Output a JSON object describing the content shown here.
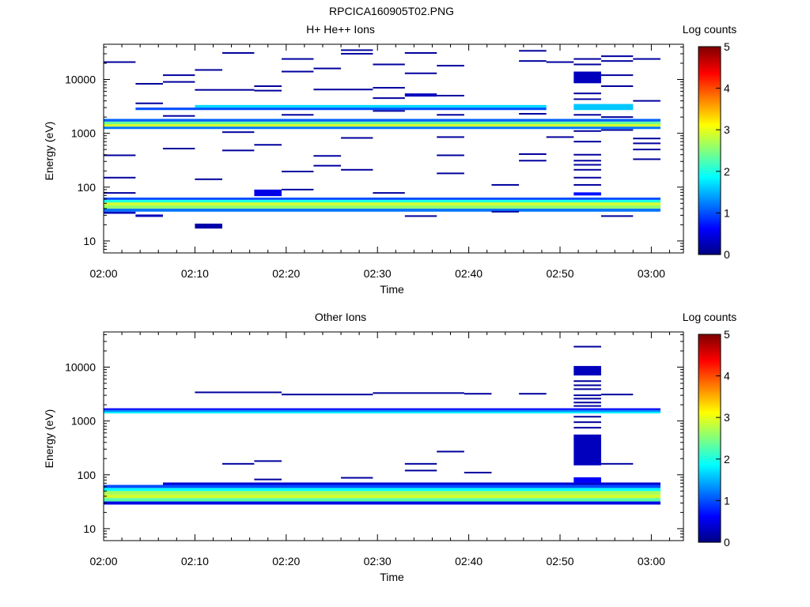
{
  "window_title": "RPCICA160905T02.PNG",
  "chart_data": [
    {
      "type": "heatmap",
      "title": "H+ He++ Ions",
      "xlabel": "Time",
      "ylabel": "Energy (eV)",
      "y_scale": "log",
      "ylim": [
        6,
        45000
      ],
      "y_ticks": [
        10,
        100,
        1000,
        10000
      ],
      "x_ticks": [
        "02:00",
        "02:10",
        "02:20",
        "02:30",
        "02:40",
        "02:50",
        "03:00"
      ],
      "x_range_minutes": [
        0,
        63
      ],
      "colorbar": {
        "label": "Log counts",
        "range": [
          0,
          5
        ],
        "ticks": [
          0,
          1,
          2,
          3,
          4,
          5
        ]
      },
      "grid": false,
      "bands": [
        {
          "t0": 0,
          "t1": 61,
          "e0": 35,
          "e1": 40,
          "v": 1.2
        },
        {
          "t0": 0,
          "t1": 61,
          "e0": 40,
          "e1": 46,
          "v": 2.6
        },
        {
          "t0": 0,
          "t1": 61,
          "e0": 46,
          "e1": 52,
          "v": 2.9
        },
        {
          "t0": 0,
          "t1": 61,
          "e0": 52,
          "e1": 58,
          "v": 2.0
        },
        {
          "t0": 0,
          "t1": 61,
          "e0": 58,
          "e1": 64,
          "v": 1.0
        },
        {
          "t0": 0,
          "t1": 61,
          "e0": 1200,
          "e1": 1330,
          "v": 1.2
        },
        {
          "t0": 0,
          "t1": 61,
          "e0": 1330,
          "e1": 1480,
          "v": 2.9
        },
        {
          "t0": 0,
          "t1": 61,
          "e0": 1480,
          "e1": 1650,
          "v": 2.4
        },
        {
          "t0": 0,
          "t1": 61,
          "e0": 1650,
          "e1": 1850,
          "v": 1.1
        },
        {
          "t0": 3.5,
          "t1": 48.5,
          "e0": 2700,
          "e1": 3000,
          "v": 1.0
        },
        {
          "t0": 10,
          "t1": 48.5,
          "e0": 3000,
          "e1": 3350,
          "v": 1.7
        },
        {
          "t0": 51.5,
          "t1": 58,
          "e0": 2700,
          "e1": 3500,
          "v": 1.6
        },
        {
          "t0": 16.5,
          "t1": 19.5,
          "e0": 68,
          "e1": 90,
          "v": 0.5
        },
        {
          "t0": 51.5,
          "t1": 54.5,
          "e0": 70,
          "e1": 80,
          "v": 0.7
        },
        {
          "t0": 10,
          "t1": 13,
          "e0": 17,
          "e1": 21,
          "v": 0.2
        },
        {
          "t0": 3.5,
          "t1": 6.5,
          "e0": 28,
          "e1": 31,
          "v": 0.3
        },
        {
          "t0": 0,
          "t1": 3.5,
          "e0": 32,
          "e1": 35,
          "v": 0.3
        },
        {
          "t0": 51.5,
          "t1": 54.5,
          "e0": 8500,
          "e1": 14000,
          "v": 0.3
        },
        {
          "t0": 33,
          "t1": 36.5,
          "e0": 4800,
          "e1": 5500,
          "v": 0.3
        }
      ],
      "lines": [
        {
          "t0": 0,
          "t1": 3.5,
          "e": 21000
        },
        {
          "t0": 0,
          "t1": 3.5,
          "e": 390
        },
        {
          "t0": 0,
          "t1": 3.5,
          "e": 150
        },
        {
          "t0": 0,
          "t1": 3.5,
          "e": 78
        },
        {
          "t0": 3.5,
          "t1": 6.5,
          "e": 8300
        },
        {
          "t0": 3.5,
          "t1": 6.5,
          "e": 3600
        },
        {
          "t0": 6.5,
          "t1": 10,
          "e": 12000
        },
        {
          "t0": 6.5,
          "t1": 10,
          "e": 9000
        },
        {
          "t0": 6.5,
          "t1": 10,
          "e": 2100
        },
        {
          "t0": 6.5,
          "t1": 10,
          "e": 520
        },
        {
          "t0": 10,
          "t1": 13,
          "e": 15000
        },
        {
          "t0": 10,
          "t1": 13,
          "e": 6400
        },
        {
          "t0": 10,
          "t1": 13,
          "e": 140
        },
        {
          "t0": 13,
          "t1": 16.5,
          "e": 31000
        },
        {
          "t0": 13,
          "t1": 16.5,
          "e": 6400
        },
        {
          "t0": 13,
          "t1": 16.5,
          "e": 1050
        },
        {
          "t0": 13,
          "t1": 16.5,
          "e": 480
        },
        {
          "t0": 16.5,
          "t1": 19.5,
          "e": 7500
        },
        {
          "t0": 16.5,
          "t1": 19.5,
          "e": 6200
        },
        {
          "t0": 16.5,
          "t1": 19.5,
          "e": 610
        },
        {
          "t0": 19.5,
          "t1": 23,
          "e": 24000
        },
        {
          "t0": 19.5,
          "t1": 23,
          "e": 14000
        },
        {
          "t0": 19.5,
          "t1": 23,
          "e": 2200
        },
        {
          "t0": 19.5,
          "t1": 23,
          "e": 195
        },
        {
          "t0": 19.5,
          "t1": 23,
          "e": 90
        },
        {
          "t0": 23,
          "t1": 26,
          "e": 16000
        },
        {
          "t0": 23,
          "t1": 26,
          "e": 6500
        },
        {
          "t0": 23,
          "t1": 26,
          "e": 380
        },
        {
          "t0": 23,
          "t1": 26,
          "e": 250
        },
        {
          "t0": 26,
          "t1": 29.5,
          "e": 35000
        },
        {
          "t0": 26,
          "t1": 29.5,
          "e": 30000
        },
        {
          "t0": 26,
          "t1": 29.5,
          "e": 6500
        },
        {
          "t0": 26,
          "t1": 29.5,
          "e": 820
        },
        {
          "t0": 26,
          "t1": 29.5,
          "e": 210
        },
        {
          "t0": 29.5,
          "t1": 33,
          "e": 19000
        },
        {
          "t0": 29.5,
          "t1": 33,
          "e": 7000
        },
        {
          "t0": 29.5,
          "t1": 33,
          "e": 4500
        },
        {
          "t0": 29.5,
          "t1": 33,
          "e": 2600
        },
        {
          "t0": 29.5,
          "t1": 33,
          "e": 78
        },
        {
          "t0": 33,
          "t1": 36.5,
          "e": 31000
        },
        {
          "t0": 33,
          "t1": 36.5,
          "e": 13000
        },
        {
          "t0": 33,
          "t1": 36.5,
          "e": 29
        },
        {
          "t0": 36.5,
          "t1": 39.5,
          "e": 18000
        },
        {
          "t0": 36.5,
          "t1": 39.5,
          "e": 5000
        },
        {
          "t0": 36.5,
          "t1": 39.5,
          "e": 2200
        },
        {
          "t0": 36.5,
          "t1": 39.5,
          "e": 850
        },
        {
          "t0": 36.5,
          "t1": 39.5,
          "e": 390
        },
        {
          "t0": 36.5,
          "t1": 39.5,
          "e": 180
        },
        {
          "t0": 42.5,
          "t1": 45.5,
          "e": 110
        },
        {
          "t0": 42.5,
          "t1": 45.5,
          "e": 35
        },
        {
          "t0": 45.5,
          "t1": 48.5,
          "e": 34000
        },
        {
          "t0": 45.5,
          "t1": 48.5,
          "e": 22000
        },
        {
          "t0": 45.5,
          "t1": 48.5,
          "e": 2300
        },
        {
          "t0": 45.5,
          "t1": 48.5,
          "e": 410
        },
        {
          "t0": 45.5,
          "t1": 48.5,
          "e": 310
        },
        {
          "t0": 48.5,
          "t1": 51.5,
          "e": 21000
        },
        {
          "t0": 48.5,
          "t1": 51.5,
          "e": 850
        },
        {
          "t0": 51.5,
          "t1": 54.5,
          "e": 24000
        },
        {
          "t0": 51.5,
          "t1": 54.5,
          "e": 19000
        },
        {
          "t0": 51.5,
          "t1": 54.5,
          "e": 5500
        },
        {
          "t0": 51.5,
          "t1": 54.5,
          "e": 4300
        },
        {
          "t0": 51.5,
          "t1": 54.5,
          "e": 2200
        },
        {
          "t0": 51.5,
          "t1": 54.5,
          "e": 1100
        },
        {
          "t0": 51.5,
          "t1": 54.5,
          "e": 700
        },
        {
          "t0": 51.5,
          "t1": 54.5,
          "e": 400
        },
        {
          "t0": 51.5,
          "t1": 54.5,
          "e": 310
        },
        {
          "t0": 51.5,
          "t1": 54.5,
          "e": 260
        },
        {
          "t0": 51.5,
          "t1": 54.5,
          "e": 210
        },
        {
          "t0": 51.5,
          "t1": 54.5,
          "e": 150
        },
        {
          "t0": 51.5,
          "t1": 54.5,
          "e": 110
        },
        {
          "t0": 54.5,
          "t1": 58,
          "e": 27000
        },
        {
          "t0": 54.5,
          "t1": 58,
          "e": 22000
        },
        {
          "t0": 54.5,
          "t1": 58,
          "e": 12000
        },
        {
          "t0": 54.5,
          "t1": 58,
          "e": 7500
        },
        {
          "t0": 54.5,
          "t1": 58,
          "e": 2000
        },
        {
          "t0": 54.5,
          "t1": 58,
          "e": 1150
        },
        {
          "t0": 54.5,
          "t1": 58,
          "e": 29
        },
        {
          "t0": 58,
          "t1": 61,
          "e": 24000
        },
        {
          "t0": 58,
          "t1": 61,
          "e": 4000
        },
        {
          "t0": 58,
          "t1": 61,
          "e": 800
        },
        {
          "t0": 58,
          "t1": 61,
          "e": 650
        },
        {
          "t0": 58,
          "t1": 61,
          "e": 500
        },
        {
          "t0": 58,
          "t1": 61,
          "e": 330
        }
      ]
    },
    {
      "type": "heatmap",
      "title": "Other Ions",
      "xlabel": "Time",
      "ylabel": "Energy (eV)",
      "y_scale": "log",
      "ylim": [
        6,
        45000
      ],
      "y_ticks": [
        10,
        100,
        1000,
        10000
      ],
      "x_ticks": [
        "02:00",
        "02:10",
        "02:20",
        "02:30",
        "02:40",
        "02:50",
        "03:00"
      ],
      "x_range_minutes": [
        0,
        63
      ],
      "colorbar": {
        "label": "Log counts",
        "range": [
          0,
          5
        ],
        "ticks": [
          0,
          1,
          2,
          3,
          4,
          5
        ]
      },
      "grid": false,
      "bands": [
        {
          "t0": 0,
          "t1": 61,
          "e0": 28,
          "e1": 32,
          "v": 0.5
        },
        {
          "t0": 0,
          "t1": 61,
          "e0": 32,
          "e1": 37,
          "v": 2.3
        },
        {
          "t0": 0,
          "t1": 61,
          "e0": 37,
          "e1": 43,
          "v": 2.9
        },
        {
          "t0": 0,
          "t1": 61,
          "e0": 43,
          "e1": 50,
          "v": 2.7
        },
        {
          "t0": 0,
          "t1": 61,
          "e0": 50,
          "e1": 57,
          "v": 1.9
        },
        {
          "t0": 0,
          "t1": 61,
          "e0": 57,
          "e1": 65,
          "v": 1.0
        },
        {
          "t0": 6.5,
          "t1": 61,
          "e0": 65,
          "e1": 72,
          "v": 0.4
        },
        {
          "t0": 0,
          "t1": 61,
          "e0": 1380,
          "e1": 1480,
          "v": 1.8
        },
        {
          "t0": 0,
          "t1": 61,
          "e0": 1480,
          "e1": 1600,
          "v": 1.3
        },
        {
          "t0": 0,
          "t1": 61,
          "e0": 1600,
          "e1": 1720,
          "v": 0.6
        },
        {
          "t0": 51.5,
          "t1": 54.5,
          "e0": 150,
          "e1": 560,
          "v": 0.3
        },
        {
          "t0": 51.5,
          "t1": 54.5,
          "e0": 7000,
          "e1": 10500,
          "v": 0.3
        },
        {
          "t0": 51.5,
          "t1": 54.5,
          "e0": 72,
          "e1": 90,
          "v": 0.6
        }
      ],
      "lines": [
        {
          "t0": 10,
          "t1": 19.5,
          "e": 3400
        },
        {
          "t0": 19.5,
          "t1": 29.5,
          "e": 3100
        },
        {
          "t0": 29.5,
          "t1": 39.5,
          "e": 3300
        },
        {
          "t0": 39.5,
          "t1": 42.5,
          "e": 3200
        },
        {
          "t0": 45.5,
          "t1": 48.5,
          "e": 3200
        },
        {
          "t0": 54.5,
          "t1": 58,
          "e": 3100
        },
        {
          "t0": 13,
          "t1": 16.5,
          "e": 160
        },
        {
          "t0": 16.5,
          "t1": 19.5,
          "e": 180
        },
        {
          "t0": 16.5,
          "t1": 19.5,
          "e": 82
        },
        {
          "t0": 26,
          "t1": 29.5,
          "e": 88
        },
        {
          "t0": 33,
          "t1": 36.5,
          "e": 160
        },
        {
          "t0": 33,
          "t1": 36.5,
          "e": 120
        },
        {
          "t0": 36.5,
          "t1": 39.5,
          "e": 270
        },
        {
          "t0": 39.5,
          "t1": 42.5,
          "e": 110
        },
        {
          "t0": 51.5,
          "t1": 54.5,
          "e": 24000
        },
        {
          "t0": 51.5,
          "t1": 54.5,
          "e": 5500
        },
        {
          "t0": 51.5,
          "t1": 54.5,
          "e": 4600
        },
        {
          "t0": 51.5,
          "t1": 54.5,
          "e": 3900
        },
        {
          "t0": 51.5,
          "t1": 54.5,
          "e": 3000
        },
        {
          "t0": 51.5,
          "t1": 54.5,
          "e": 2600
        },
        {
          "t0": 51.5,
          "t1": 54.5,
          "e": 2200
        },
        {
          "t0": 51.5,
          "t1": 54.5,
          "e": 1900
        },
        {
          "t0": 51.5,
          "t1": 54.5,
          "e": 1200
        },
        {
          "t0": 51.5,
          "t1": 54.5,
          "e": 950
        },
        {
          "t0": 51.5,
          "t1": 54.5,
          "e": 750
        },
        {
          "t0": 54.5,
          "t1": 58,
          "e": 160
        }
      ]
    }
  ]
}
